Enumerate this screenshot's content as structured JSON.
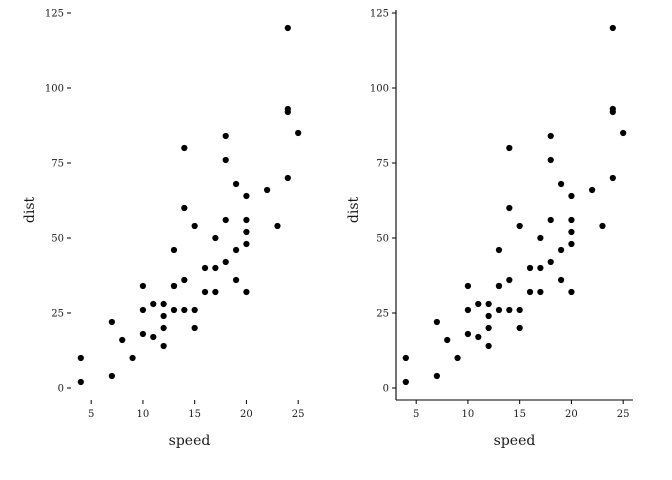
{
  "chart_data": [
    {
      "type": "scatter",
      "xlabel": "speed",
      "ylabel": "dist",
      "xlim": [
        3.05,
        25.95
      ],
      "ylim": [
        -4.0,
        126.0
      ],
      "xticks": [
        5,
        10,
        15,
        20,
        25
      ],
      "yticks": [
        0,
        25,
        50,
        75,
        100,
        125
      ],
      "axis_lines": false,
      "grid": false,
      "point_color": "#000000",
      "points": [
        [
          4,
          2
        ],
        [
          4,
          10
        ],
        [
          7,
          4
        ],
        [
          7,
          22
        ],
        [
          8,
          16
        ],
        [
          9,
          10
        ],
        [
          10,
          18
        ],
        [
          10,
          26
        ],
        [
          10,
          34
        ],
        [
          11,
          17
        ],
        [
          11,
          28
        ],
        [
          12,
          14
        ],
        [
          12,
          20
        ],
        [
          12,
          24
        ],
        [
          12,
          28
        ],
        [
          13,
          26
        ],
        [
          13,
          34
        ],
        [
          13,
          34
        ],
        [
          13,
          46
        ],
        [
          14,
          26
        ],
        [
          14,
          36
        ],
        [
          14,
          60
        ],
        [
          14,
          80
        ],
        [
          15,
          20
        ],
        [
          15,
          26
        ],
        [
          15,
          54
        ],
        [
          16,
          32
        ],
        [
          16,
          40
        ],
        [
          17,
          32
        ],
        [
          17,
          40
        ],
        [
          17,
          50
        ],
        [
          18,
          42
        ],
        [
          18,
          56
        ],
        [
          18,
          76
        ],
        [
          18,
          84
        ],
        [
          19,
          36
        ],
        [
          19,
          46
        ],
        [
          19,
          68
        ],
        [
          20,
          32
        ],
        [
          20,
          48
        ],
        [
          20,
          52
        ],
        [
          20,
          56
        ],
        [
          20,
          64
        ],
        [
          22,
          66
        ],
        [
          23,
          54
        ],
        [
          24,
          70
        ],
        [
          24,
          92
        ],
        [
          24,
          93
        ],
        [
          24,
          120
        ],
        [
          25,
          85
        ]
      ]
    },
    {
      "type": "scatter",
      "xlabel": "speed",
      "ylabel": "dist",
      "xlim": [
        3.05,
        25.95
      ],
      "ylim": [
        -4.0,
        126.0
      ],
      "xticks": [
        5,
        10,
        15,
        20,
        25
      ],
      "yticks": [
        0,
        25,
        50,
        75,
        100,
        125
      ],
      "axis_lines": true,
      "grid": false,
      "point_color": "#000000",
      "points": [
        [
          4,
          2
        ],
        [
          4,
          10
        ],
        [
          7,
          4
        ],
        [
          7,
          22
        ],
        [
          8,
          16
        ],
        [
          9,
          10
        ],
        [
          10,
          18
        ],
        [
          10,
          26
        ],
        [
          10,
          34
        ],
        [
          11,
          17
        ],
        [
          11,
          28
        ],
        [
          12,
          14
        ],
        [
          12,
          20
        ],
        [
          12,
          24
        ],
        [
          12,
          28
        ],
        [
          13,
          26
        ],
        [
          13,
          34
        ],
        [
          13,
          34
        ],
        [
          13,
          46
        ],
        [
          14,
          26
        ],
        [
          14,
          36
        ],
        [
          14,
          60
        ],
        [
          14,
          80
        ],
        [
          15,
          20
        ],
        [
          15,
          26
        ],
        [
          15,
          54
        ],
        [
          16,
          32
        ],
        [
          16,
          40
        ],
        [
          17,
          32
        ],
        [
          17,
          40
        ],
        [
          17,
          50
        ],
        [
          18,
          42
        ],
        [
          18,
          56
        ],
        [
          18,
          76
        ],
        [
          18,
          84
        ],
        [
          19,
          36
        ],
        [
          19,
          46
        ],
        [
          19,
          68
        ],
        [
          20,
          32
        ],
        [
          20,
          48
        ],
        [
          20,
          52
        ],
        [
          20,
          56
        ],
        [
          20,
          64
        ],
        [
          22,
          66
        ],
        [
          23,
          54
        ],
        [
          24,
          70
        ],
        [
          24,
          92
        ],
        [
          24,
          93
        ],
        [
          24,
          120
        ],
        [
          25,
          85
        ]
      ]
    }
  ]
}
